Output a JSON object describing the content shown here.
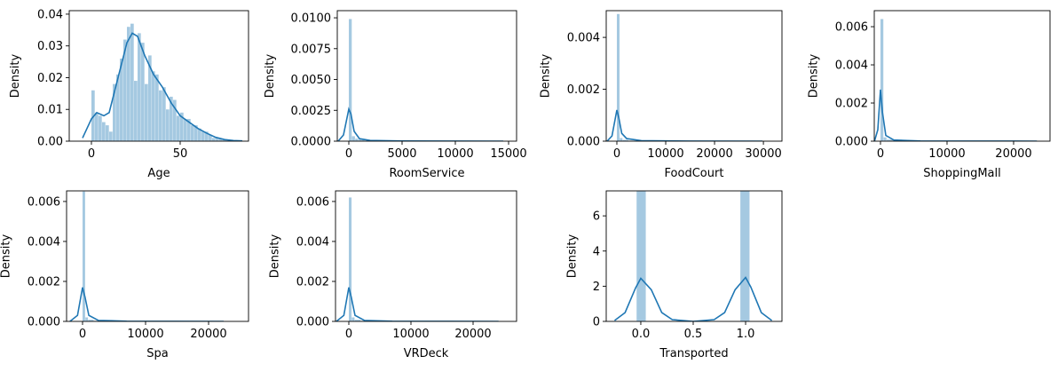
{
  "chart_data": [
    {
      "type": "histogram",
      "xlabel": "Age",
      "ylabel": "Density",
      "color": "#1f77b4",
      "xlim": [
        -12.5,
        88.5
      ],
      "ylim": [
        0,
        0.0411
      ],
      "xticks": [
        0,
        50
      ],
      "yticks": [
        {
          "value": 0,
          "label": "0.00"
        },
        0.01,
        0.02,
        0.03,
        0.04
      ],
      "bins": [
        0,
        2,
        4,
        6,
        8,
        10,
        12,
        14,
        16,
        18,
        20,
        22,
        24,
        26,
        28,
        30,
        32,
        34,
        36,
        38,
        40,
        42,
        44,
        46,
        48,
        50,
        52,
        54,
        56,
        58,
        60,
        62,
        64,
        66,
        68,
        70,
        72,
        74,
        76,
        78,
        80
      ],
      "values": [
        0.016,
        0.009,
        0.008,
        0.006,
        0.005,
        0.003,
        0.018,
        0.021,
        0.026,
        0.032,
        0.036,
        0.037,
        0.019,
        0.034,
        0.031,
        0.018,
        0.027,
        0.022,
        0.021,
        0.016,
        0.017,
        0.01,
        0.014,
        0.013,
        0.008,
        0.009,
        0.007,
        0.007,
        0.005,
        0.005,
        0.004,
        0.003,
        0.003,
        0.002,
        0.001,
        0.001,
        0.0007,
        0.0004,
        0.0002,
        0.0002
      ],
      "kde": {
        "x": [
          -5,
          0,
          3,
          7,
          10,
          15,
          20,
          23,
          26,
          30,
          35,
          40,
          45,
          50,
          55,
          60,
          65,
          70,
          75,
          80,
          85
        ],
        "values": [
          0.001,
          0.007,
          0.009,
          0.008,
          0.009,
          0.02,
          0.031,
          0.034,
          0.033,
          0.027,
          0.021,
          0.017,
          0.012,
          0.008,
          0.006,
          0.004,
          0.0025,
          0.0012,
          0.0005,
          0.0002,
          0.0001
        ]
      }
    },
    {
      "type": "histogram",
      "xlabel": "RoomService",
      "ylabel": "Density",
      "color": "#1f77b4",
      "xlim": [
        -1083,
        15750
      ],
      "ylim": [
        0,
        0.01058
      ],
      "xticks": [
        0,
        5000,
        10000,
        15000
      ],
      "yticks": [
        {
          "value": 0,
          "label": "0.0000"
        },
        0.0025,
        {
          "value": 0.005,
          "label": "0.0050"
        },
        0.0075,
        {
          "value": 0.01,
          "label": "0.0100"
        }
      ],
      "bins": [
        0,
        300,
        600,
        900,
        1200,
        1500,
        3000,
        6000,
        14400
      ],
      "values": [
        0.0099,
        0.0004,
        0.0002,
        0.00012,
        0.0001,
        4e-05,
        1e-05,
        2e-06
      ],
      "kde": {
        "x": [
          -1000,
          -500,
          0,
          200,
          500,
          1000,
          2000,
          5000,
          10000,
          14500
        ],
        "values": [
          0,
          0.0005,
          0.0026,
          0.0022,
          0.0008,
          0.0002,
          6e-05,
          1e-05,
          2e-06,
          0
        ]
      }
    },
    {
      "type": "histogram",
      "xlabel": "FoodCourt",
      "ylabel": "Density",
      "color": "#1f77b4",
      "xlim": [
        -2180,
        33800
      ],
      "ylim": [
        0,
        0.00503
      ],
      "xticks": [
        0,
        10000,
        20000,
        30000
      ],
      "yticks": [
        {
          "value": 0,
          "label": "0.000"
        },
        0.002,
        0.004
      ],
      "bins": [
        0,
        600,
        1200,
        2400,
        4800,
        9600,
        29800
      ],
      "values": [
        0.0049,
        0.00012,
        5e-05,
        2e-05,
        5e-06,
        1e-06
      ],
      "kde": {
        "x": [
          -2000,
          -1000,
          0,
          400,
          1000,
          2000,
          5000,
          15000,
          29800
        ],
        "values": [
          0,
          0.0002,
          0.0012,
          0.0009,
          0.0003,
          0.0001,
          2e-05,
          3e-06,
          0
        ]
      }
    },
    {
      "type": "histogram",
      "xlabel": "ShoppingMall",
      "ylabel": "Density",
      "color": "#1f77b4",
      "xlim": [
        -933,
        25470
      ],
      "ylim": [
        0,
        0.00684
      ],
      "xticks": [
        0,
        10000,
        20000
      ],
      "yticks": [
        {
          "value": 0,
          "label": "0.000"
        },
        0.002,
        0.004,
        0.006
      ],
      "bins": [
        0,
        470,
        940,
        1880,
        3760,
        7520,
        23500
      ],
      "values": [
        0.0064,
        0.0002,
        8e-05,
        3e-05,
        8e-06,
        1e-06
      ],
      "kde": {
        "x": [
          -900,
          -400,
          0,
          300,
          800,
          2000,
          6000,
          23500
        ],
        "values": [
          0,
          0.0006,
          0.0027,
          0.0015,
          0.0003,
          6e-05,
          1e-05,
          0
        ]
      }
    },
    {
      "type": "histogram",
      "xlabel": "Spa",
      "ylabel": "Density",
      "color": "#1f77b4",
      "xlim": [
        -2535,
        26338
      ],
      "ylim": [
        0,
        0.00653
      ],
      "xticks": [
        0,
        10000,
        20000
      ],
      "yticks": [
        {
          "value": 0,
          "label": "0.000"
        },
        0.002,
        0.004,
        0.006
      ],
      "bins": [
        0,
        450,
        900,
        1800,
        3600,
        7200,
        22400
      ],
      "values": [
        0.0065,
        0.0002,
        8e-05,
        3e-05,
        8e-06,
        1e-06
      ],
      "kde": {
        "x": [
          -2000,
          -800,
          0,
          400,
          1000,
          2500,
          7000,
          22400
        ],
        "values": [
          0,
          0.0003,
          0.0017,
          0.0012,
          0.0003,
          5e-05,
          1e-05,
          0
        ]
      }
    },
    {
      "type": "histogram",
      "xlabel": "VRDeck",
      "ylabel": "Density",
      "color": "#1f77b4",
      "xlim": [
        -2143,
        27000
      ],
      "ylim": [
        0,
        0.00653
      ],
      "xticks": [
        0,
        10000,
        20000
      ],
      "yticks": [
        {
          "value": 0,
          "label": "0.000"
        },
        0.002,
        0.004,
        0.006
      ],
      "bins": [
        0,
        480,
        960,
        1920,
        3840,
        7680,
        24100
      ],
      "values": [
        0.0062,
        0.0002,
        8e-05,
        3e-05,
        8e-06,
        1e-06
      ],
      "kde": {
        "x": [
          -2000,
          -800,
          0,
          400,
          1000,
          2500,
          7000,
          24100
        ],
        "values": [
          0,
          0.0003,
          0.0017,
          0.0012,
          0.0003,
          5e-05,
          1e-05,
          0
        ]
      }
    },
    {
      "type": "histogram",
      "xlabel": "Transported",
      "ylabel": "Density",
      "color": "#1f77b4",
      "xlim": [
        -0.33,
        1.347
      ],
      "ylim": [
        0,
        7.42
      ],
      "xticks": [
        {
          "value": 0,
          "label": "0.0"
        },
        0.5,
        {
          "value": 1,
          "label": "1.0"
        }
      ],
      "yticks": [
        0,
        2,
        4,
        6
      ],
      "bins": [
        -0.04,
        0.05,
        0.14,
        0.23,
        0.32,
        0.41,
        0.5,
        0.59,
        0.68,
        0.77,
        0.86,
        0.95,
        1.04
      ],
      "values": [
        7.4,
        0,
        0,
        0,
        0,
        0,
        0,
        0,
        0,
        0,
        0,
        7.5
      ],
      "kde": {
        "x": [
          -0.25,
          -0.15,
          -0.05,
          0,
          0.1,
          0.2,
          0.3,
          0.5,
          0.7,
          0.8,
          0.9,
          1.0,
          1.05,
          1.15,
          1.25
        ],
        "values": [
          0.05,
          0.5,
          1.9,
          2.45,
          1.8,
          0.5,
          0.1,
          0,
          0.1,
          0.5,
          1.8,
          2.5,
          1.95,
          0.5,
          0.05
        ]
      }
    }
  ]
}
